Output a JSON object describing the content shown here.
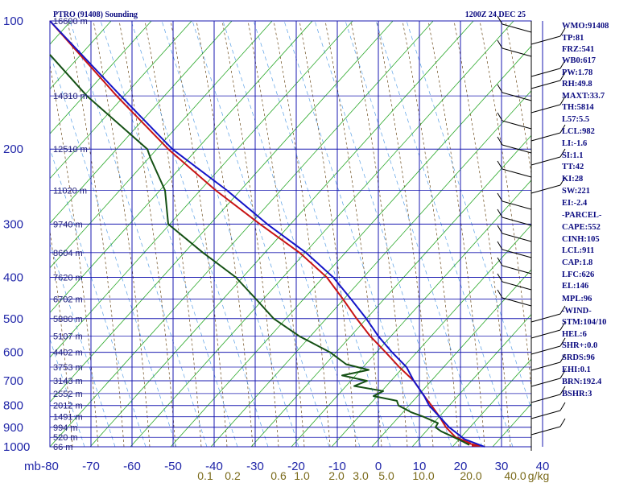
{
  "chart_data": {
    "type": "line",
    "title": "PTRO (91408) Sounding",
    "time": "1200Z 24 DEC 25",
    "unit_label": "mb",
    "pressure_levels": [
      100,
      200,
      300,
      400,
      500,
      600,
      700,
      800,
      900,
      1000
    ],
    "extra_pressure_lines": [
      150,
      250,
      350,
      450,
      550,
      650,
      750,
      850,
      950
    ],
    "temperature_ticks": [
      -80,
      -70,
      -60,
      -50,
      -40,
      -30,
      -20,
      -10,
      0,
      10,
      20,
      30,
      40
    ],
    "temperature_tick_labels": [
      "-80",
      "-70",
      "-60",
      "-50",
      "-40",
      "-30",
      "-20",
      "-10",
      "0",
      "10",
      "20",
      "30",
      "40"
    ],
    "height_labels": [
      {
        "p": 100,
        "text": "16600 m"
      },
      {
        "p": 150,
        "text": "14310 m"
      },
      {
        "p": 200,
        "text": "12510 m"
      },
      {
        "p": 250,
        "text": "11020 m"
      },
      {
        "p": 300,
        "text": "9740 m"
      },
      {
        "p": 350,
        "text": "8604 m"
      },
      {
        "p": 400,
        "text": "7620 m"
      },
      {
        "p": 450,
        "text": "6702 m"
      },
      {
        "p": 500,
        "text": "5880 m"
      },
      {
        "p": 550,
        "text": "5107 m"
      },
      {
        "p": 600,
        "text": "4402 m"
      },
      {
        "p": 650,
        "text": "3753 m"
      },
      {
        "p": 700,
        "text": "3143 m"
      },
      {
        "p": 750,
        "text": "2552 m"
      },
      {
        "p": 800,
        "text": "2012 m"
      },
      {
        "p": 850,
        "text": "1491 m"
      },
      {
        "p": 900,
        "text": "994 m"
      },
      {
        "p": 950,
        "text": "520 m"
      },
      {
        "p": 1000,
        "text": "66 m"
      }
    ],
    "mixing_ratio_labels": [
      "0.1",
      "0.2",
      "0.6",
      "1.0",
      "2.0",
      "3.0",
      "5.0",
      "10.0",
      "20.0",
      "40.0",
      "g/kg"
    ],
    "series": [
      {
        "color": "#c81414",
        "p": [
          995,
          980,
          950,
          900,
          850,
          800,
          760,
          700,
          650,
          600,
          550,
          500,
          450,
          400,
          350,
          300,
          250,
          200,
          150,
          100
        ],
        "x": [
          [
            586,
            596
          ],
          [
            580,
            584
          ],
          [
            566,
            566
          ],
          [
            554,
            554
          ],
          [
            546,
            546
          ],
          [
            536,
            536
          ],
          [
            527,
            527
          ],
          [
            514,
            514
          ],
          [
            496,
            496
          ],
          [
            479,
            479
          ],
          [
            460,
            460
          ],
          [
            443,
            443
          ],
          [
            426,
            426
          ],
          [
            406,
            406
          ],
          [
            372,
            372
          ],
          [
            323,
            323
          ],
          [
            268,
            268
          ],
          [
            209,
            209
          ],
          [
            145,
            145
          ],
          [
            62,
            62
          ]
        ]
      },
      {
        "color": "#1414c8",
        "p": [
          1000,
          960,
          900,
          850,
          800,
          760,
          700,
          650,
          600,
          550,
          500,
          450,
          400,
          350,
          300,
          250,
          200,
          150,
          100
        ],
        "x": [
          [
            602
          ],
          [
            577
          ],
          [
            558
          ],
          [
            546
          ],
          [
            533
          ],
          [
            527
          ],
          [
            514
          ],
          [
            505
          ],
          [
            487
          ],
          [
            470
          ],
          [
            455
          ],
          [
            436
          ],
          [
            414
          ],
          [
            380
          ],
          [
            332
          ],
          [
            282
          ],
          [
            214
          ],
          [
            150
          ],
          [
            62
          ]
        ]
      },
      {
        "color": "#145014",
        "p": [
          990,
          970,
          940,
          920,
          900,
          880,
          850,
          830,
          800,
          780,
          760,
          740,
          720,
          700,
          680,
          660,
          640,
          600,
          550,
          500,
          450,
          400,
          350,
          300,
          250,
          210,
          200,
          150,
          120
        ],
        "x": [
          [
            583
          ],
          [
            574
          ],
          [
            559
          ],
          [
            548
          ],
          [
            541
          ],
          [
            544
          ],
          [
            526
          ],
          [
            511
          ],
          [
            495
          ],
          [
            493
          ],
          [
            464
          ],
          [
            476
          ],
          [
            440
          ],
          [
            456
          ],
          [
            425
          ],
          [
            458
          ],
          [
            430
          ],
          [
            410
          ],
          [
            372
          ],
          [
            340
          ],
          [
            318
          ],
          [
            293
          ],
          [
            252
          ],
          [
            209
          ],
          [
            205
          ],
          [
            187
          ],
          [
            183
          ],
          [
            108
          ],
          [
            62
          ]
        ]
      }
    ],
    "wind_barbs": "right-side profile",
    "indices": {
      "wmo": "WMO:91408",
      "tp": "TP:81",
      "frz": "FRZ:541",
      "wb0": "WB0:617",
      "pw": "PW:1.78",
      "rh": "RH:49.8",
      "maxt": "MAXT:33.7",
      "th": "TH:5814",
      "l57": "L57:5.5",
      "lcl": "LCL:982",
      "li": "LI:-1.6",
      "si": "SI:1.1",
      "tt": "TT:42",
      "ki": "KI:28",
      "sw": "SW:221",
      "ei": "EI:-2.4",
      "parcel": "-PARCEL-",
      "cape": "CAPE:552",
      "cinh": "CINH:105",
      "lcl2": "LCL:911",
      "cap": "CAP:1.8",
      "lfc": "LFC:626",
      "el": "EL:146",
      "mpl": "MPL:96",
      "wind": "-WIND-",
      "stm": "STM:104/10",
      "hel": "HEL:6",
      "shr": "SHR+:0.0",
      "srds": "SRDS:96",
      "ehi": "EHI:0.1",
      "brn": "BRN:192.4",
      "bshr": "BSHR:3"
    }
  }
}
